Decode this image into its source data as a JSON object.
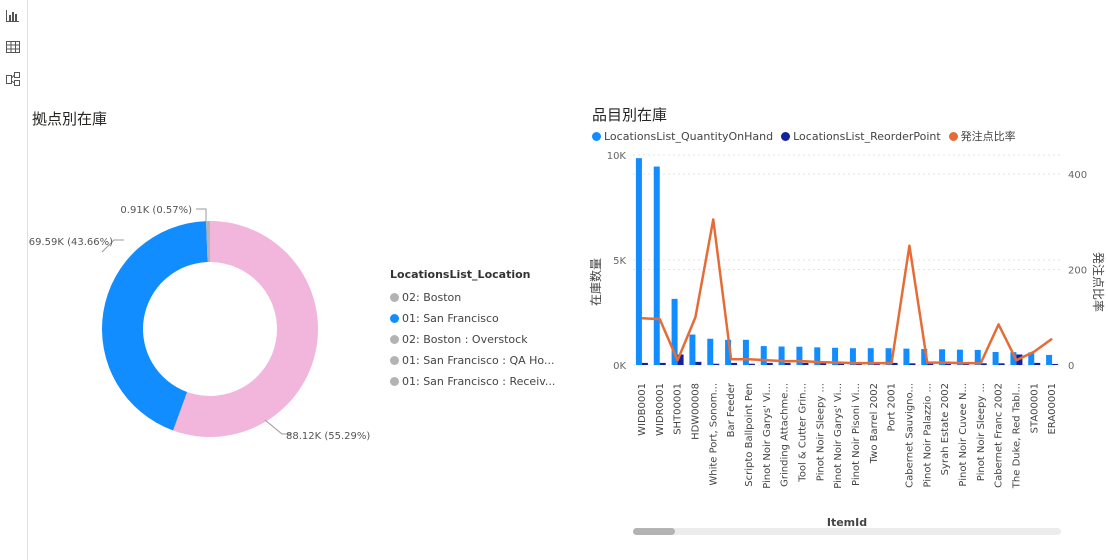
{
  "sidebar": {
    "icons": [
      "bar-chart-icon",
      "table-icon",
      "model-icon"
    ]
  },
  "donut": {
    "title": "拠点別在庫",
    "legend_title": "LocationsList_Location",
    "legend": [
      {
        "label": "02: Boston",
        "color": "#b3b3b3"
      },
      {
        "label": "01: San Francisco",
        "color": "#118dff"
      },
      {
        "label": "02: Boston : Overstock",
        "color": "#b3b3b3"
      },
      {
        "label": "01: San Francisco : QA Ho...",
        "color": "#b3b3b3"
      },
      {
        "label": "01: San Francisco : Receiv...",
        "color": "#b3b3b3"
      }
    ],
    "labels": {
      "pink": "88.12K (55.29%)",
      "blue": "69.59K (43.66%)",
      "small": "0.91K (0.57%)"
    }
  },
  "combo": {
    "title": "品目別在庫",
    "legend": [
      {
        "label": "LocationsList_QuantityOnHand",
        "color": "#118dff"
      },
      {
        "label": "LocationsList_ReorderPoint",
        "color": "#12239e"
      },
      {
        "label": "発注点比率",
        "color": "#e66c37"
      }
    ],
    "y_left_label": "在庫数量",
    "y_right_label": "発注点比率",
    "x_label": "ItemId",
    "y_left_ticks": [
      "0K",
      "5K",
      "10K"
    ],
    "y_right_ticks": [
      "0",
      "200",
      "400"
    ]
  },
  "chart_data": [
    {
      "type": "pie",
      "title": "拠点別在庫",
      "legend_title": "LocationsList_Location",
      "slices": [
        {
          "label": "02: Boston",
          "value": 88.12,
          "percent": 55.29,
          "color": "#f2b6dd"
        },
        {
          "label": "01: San Francisco",
          "value": 69.59,
          "percent": 43.66,
          "color": "#118dff"
        },
        {
          "label": "02: Boston : Overstock",
          "value": 0.91,
          "percent": 0.57,
          "color": "#b3b3b3"
        }
      ]
    },
    {
      "type": "bar",
      "title": "品目別在庫",
      "xlabel": "ItemId",
      "ylabel": "在庫数量",
      "y2label": "発注点比率",
      "ylim": [
        0,
        10000
      ],
      "y2lim": [
        0,
        440
      ],
      "categories": [
        "WIDB0001",
        "WIDR0001",
        "SHT00001",
        "HDW00008",
        "White Port, Sonom...",
        "Bar Feeder",
        "Scripto Ballpoint Pen",
        "Pinot Noir Garys' Vi...",
        "Grinding Attachme...",
        "Tool & Cutter Grin...",
        "Pinot Noir Sleepy ...",
        "Pinot Noir Garys' Vi...",
        "Pinot Noir Pisoni Vi...",
        "Two Barrel 2002",
        "Port 2001",
        "Cabernet Sauvigno...",
        "Pinot Noir Palazzio ...",
        "Syrah Estate 2002",
        "Pinot Noir Cuvee N...",
        "Pinot Noir Sleepy ...",
        "Cabernet Franc 2002",
        "The Duke, Red Tabl...",
        "STA00001",
        "ERA00001"
      ],
      "series": [
        {
          "name": "LocationsList_QuantityOnHand",
          "type": "bar",
          "color": "#118dff",
          "values": [
            9850,
            9450,
            3150,
            1450,
            1250,
            1200,
            1200,
            900,
            880,
            870,
            840,
            820,
            800,
            800,
            800,
            780,
            760,
            750,
            730,
            720,
            620,
            610,
            600,
            480
          ]
        },
        {
          "name": "LocationsList_ReorderPoint",
          "type": "bar",
          "color": "#12239e",
          "values": [
            100,
            100,
            500,
            150,
            60,
            100,
            60,
            100,
            100,
            100,
            100,
            100,
            100,
            100,
            100,
            80,
            80,
            80,
            80,
            80,
            80,
            500,
            100,
            50
          ]
        },
        {
          "name": "発注点比率",
          "type": "line",
          "axis": "right",
          "color": "#e66c37",
          "values": [
            98,
            96,
            10,
            100,
            305,
            12,
            12,
            10,
            8,
            8,
            6,
            5,
            4,
            4,
            4,
            250,
            5,
            5,
            4,
            4,
            85,
            10,
            28,
            55
          ]
        }
      ]
    }
  ]
}
